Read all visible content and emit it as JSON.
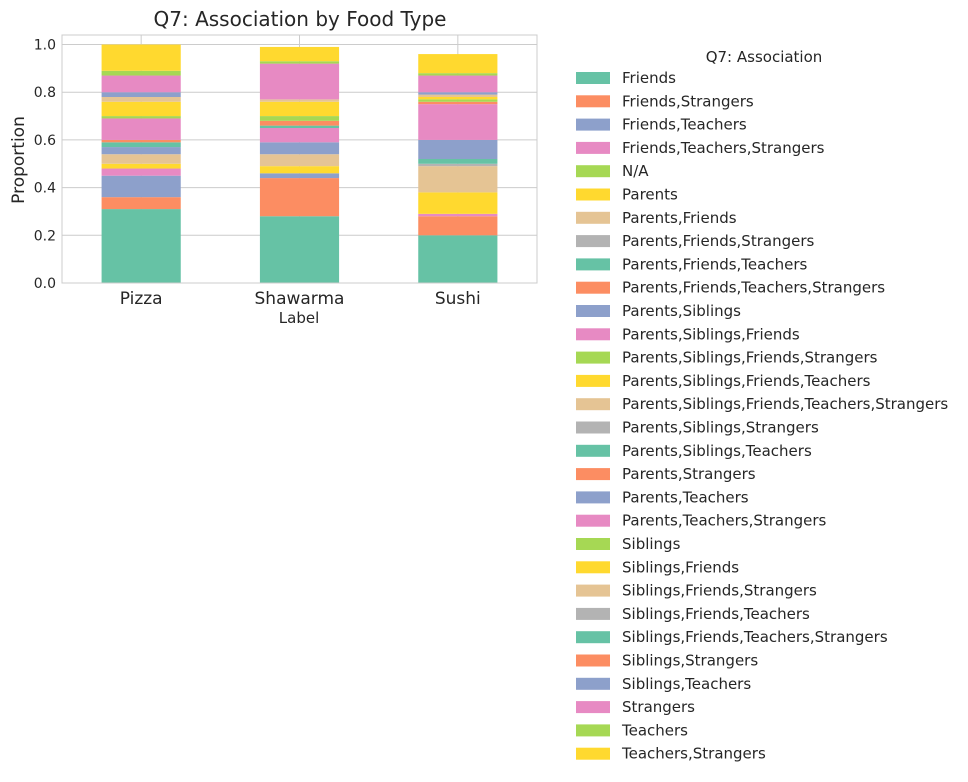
{
  "chart_data": {
    "type": "bar",
    "stacked": true,
    "title": "Q7: Association by Food Type",
    "xlabel": "Label",
    "ylabel": "Proportion",
    "ylim": [
      0,
      1.04
    ],
    "yticks": [
      "0.0",
      "0.2",
      "0.4",
      "0.6",
      "0.8",
      "1.0"
    ],
    "grid": true,
    "legend_title": "Q7: Association",
    "legend_placement": "outside-right",
    "categories": [
      "Pizza",
      "Shawarma",
      "Sushi"
    ],
    "series": [
      {
        "name": "Friends",
        "color": "#66c2a5",
        "values": [
          0.31,
          0.28,
          0.2
        ]
      },
      {
        "name": "Friends,Strangers",
        "color": "#fc8d62",
        "values": [
          0.05,
          0.16,
          0.08
        ]
      },
      {
        "name": "Friends,Teachers",
        "color": "#8da0cb",
        "values": [
          0.09,
          0.02,
          0.0
        ]
      },
      {
        "name": "Friends,Teachers,Strangers",
        "color": "#e78ac3",
        "values": [
          0.03,
          0.0,
          0.01
        ]
      },
      {
        "name": "N/A",
        "color": "#a6d854",
        "values": [
          0.0,
          0.0,
          0.0
        ]
      },
      {
        "name": "Parents",
        "color": "#ffd92f",
        "values": [
          0.02,
          0.03,
          0.09
        ]
      },
      {
        "name": "Parents,Friends",
        "color": "#e5c494",
        "values": [
          0.04,
          0.05,
          0.11
        ]
      },
      {
        "name": "Parents,Friends,Strangers",
        "color": "#b3b3b3",
        "values": [
          0.0,
          0.0,
          0.01
        ]
      },
      {
        "name": "Parents,Friends,Teachers",
        "color": "#66c2a5",
        "values": [
          0.0,
          0.0,
          0.02
        ]
      },
      {
        "name": "Parents,Friends,Teachers,Strangers",
        "color": "#fc8d62",
        "values": [
          0.0,
          0.0,
          0.0
        ]
      },
      {
        "name": "Parents,Siblings",
        "color": "#8da0cb",
        "values": [
          0.03,
          0.05,
          0.08
        ]
      },
      {
        "name": "Parents,Siblings,Friends",
        "color": "#e78ac3",
        "values": [
          0.0,
          0.06,
          0.15
        ]
      },
      {
        "name": "Parents,Siblings,Friends,Strangers",
        "color": "#a6d854",
        "values": [
          0.0,
          0.0,
          0.0
        ]
      },
      {
        "name": "Parents,Siblings,Friends,Teachers",
        "color": "#ffd92f",
        "values": [
          0.0,
          0.0,
          0.0
        ]
      },
      {
        "name": "Parents,Siblings,Friends,Teachers,Strangers",
        "color": "#e5c494",
        "values": [
          0.0,
          0.0,
          0.0
        ]
      },
      {
        "name": "Parents,Siblings,Strangers",
        "color": "#b3b3b3",
        "values": [
          0.0,
          0.0,
          0.0
        ]
      },
      {
        "name": "Parents,Siblings,Teachers",
        "color": "#66c2a5",
        "values": [
          0.02,
          0.01,
          0.0
        ]
      },
      {
        "name": "Parents,Strangers",
        "color": "#fc8d62",
        "values": [
          0.01,
          0.02,
          0.01
        ]
      },
      {
        "name": "Parents,Teachers",
        "color": "#8da0cb",
        "values": [
          0.0,
          0.0,
          0.0
        ]
      },
      {
        "name": "Parents,Teachers,Strangers",
        "color": "#e78ac3",
        "values": [
          0.09,
          0.0,
          0.0
        ]
      },
      {
        "name": "Siblings",
        "color": "#a6d854",
        "values": [
          0.01,
          0.02,
          0.01
        ]
      },
      {
        "name": "Siblings,Friends",
        "color": "#ffd92f",
        "values": [
          0.06,
          0.06,
          0.01
        ]
      },
      {
        "name": "Siblings,Friends,Strangers",
        "color": "#e5c494",
        "values": [
          0.02,
          0.01,
          0.01
        ]
      },
      {
        "name": "Siblings,Friends,Teachers",
        "color": "#b3b3b3",
        "values": [
          0.0,
          0.0,
          0.0
        ]
      },
      {
        "name": "Siblings,Friends,Teachers,Strangers",
        "color": "#66c2a5",
        "values": [
          0.0,
          0.0,
          0.0
        ]
      },
      {
        "name": "Siblings,Strangers",
        "color": "#fc8d62",
        "values": [
          0.0,
          0.0,
          0.0
        ]
      },
      {
        "name": "Siblings,Teachers",
        "color": "#8da0cb",
        "values": [
          0.02,
          0.0,
          0.01
        ]
      },
      {
        "name": "Strangers",
        "color": "#e78ac3",
        "values": [
          0.07,
          0.15,
          0.07
        ]
      },
      {
        "name": "Teachers",
        "color": "#a6d854",
        "values": [
          0.02,
          0.01,
          0.01
        ]
      },
      {
        "name": "Teachers,Strangers",
        "color": "#ffd92f",
        "values": [
          0.11,
          0.06,
          0.08
        ]
      }
    ]
  }
}
